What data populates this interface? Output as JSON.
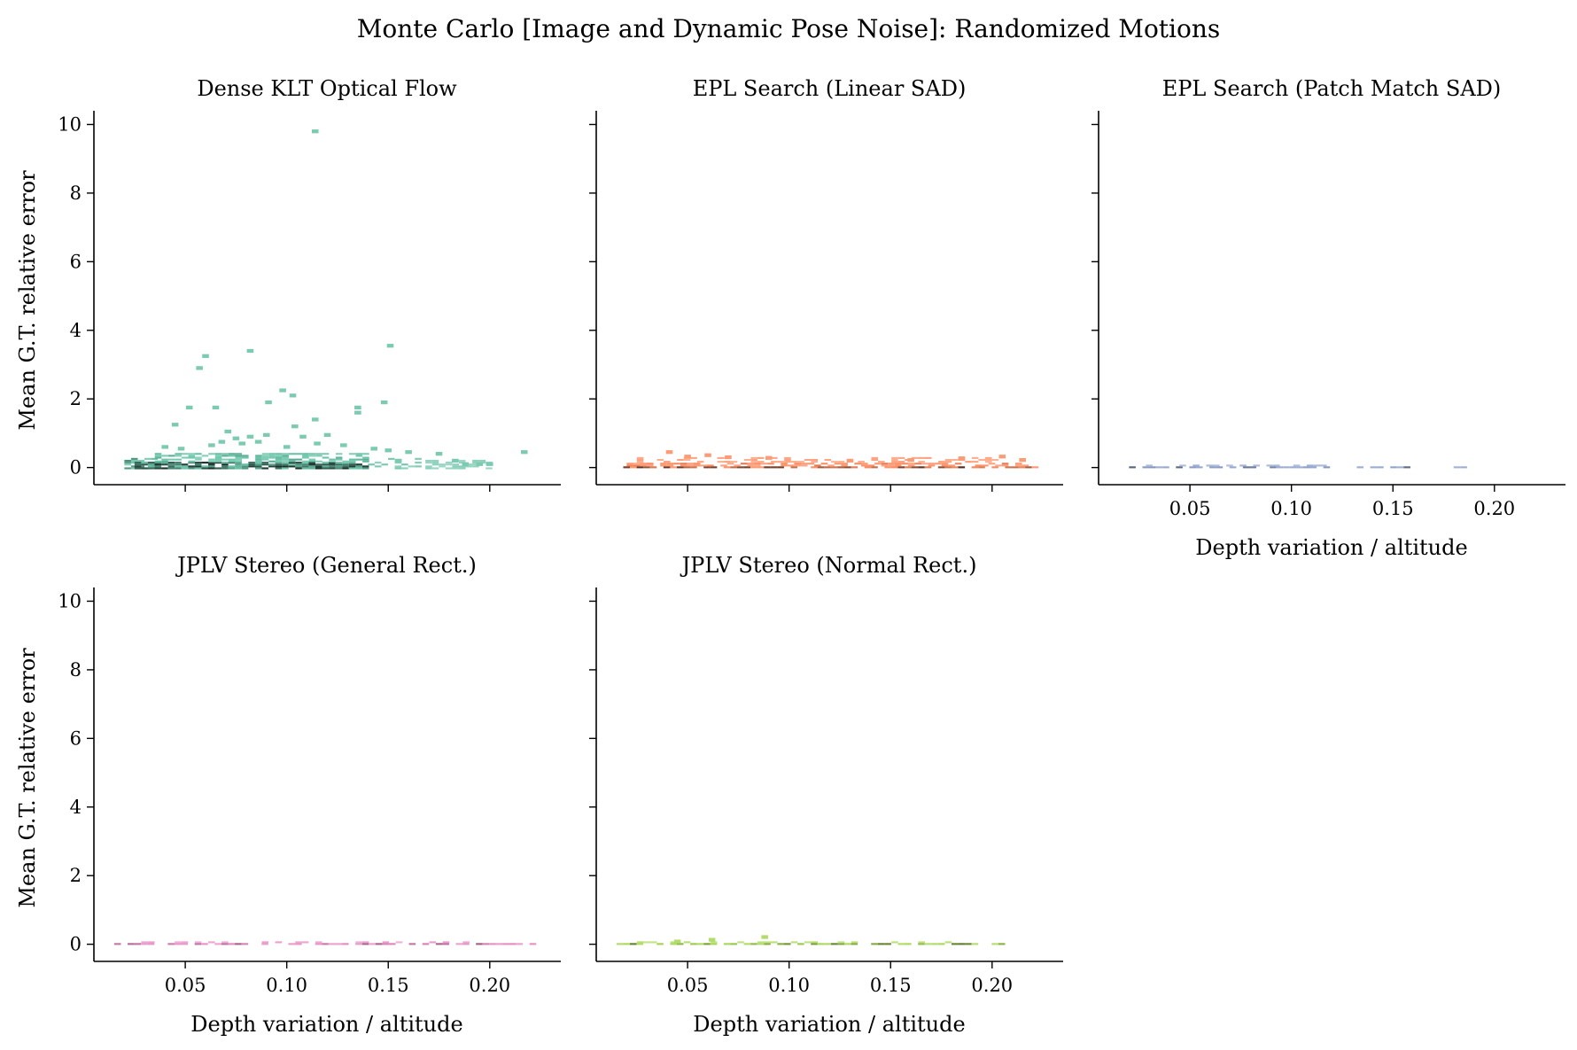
{
  "chart_data": {
    "type": "heatmap",
    "title": "Monte Carlo [Image and Dynamic Pose Noise]: Randomized Motions",
    "xlabel": "Depth variation / altitude",
    "ylabel": "Mean G.T. relative error",
    "xlim": [
      0.005,
      0.235
    ],
    "ylim": [
      -0.5,
      10.4
    ],
    "xticks": [
      "0.05",
      "0.10",
      "0.15",
      "0.20"
    ],
    "yticks": [
      "0",
      "2",
      "4",
      "6",
      "8",
      "10"
    ],
    "shared_axes": true,
    "layout": "2 rows x 3 columns, 5 panels",
    "panels": [
      {
        "title": "Dense KLT Optical Flow",
        "color": "#66c2a5",
        "x_range": [
          0.02,
          0.22
        ],
        "bulk": [
          {
            "x": [
              0.02,
              0.035
            ],
            "y": [
              -0.05,
              0.25
            ],
            "density": 0.55
          },
          {
            "x": [
              0.025,
              0.14
            ],
            "y": [
              -0.05,
              0.15
            ],
            "density": 0.85
          },
          {
            "x": [
              0.035,
              0.14
            ],
            "y": [
              0.15,
              0.4
            ],
            "density": 0.45
          },
          {
            "x": [
              0.14,
              0.165
            ],
            "y": [
              -0.05,
              0.25
            ],
            "density": 0.35
          },
          {
            "x": [
              0.165,
              0.2
            ],
            "y": [
              -0.05,
              0.2
            ],
            "density": 0.2
          }
        ],
        "points": [
          [
            0.114,
            9.8
          ],
          [
            0.06,
            3.25
          ],
          [
            0.057,
            2.9
          ],
          [
            0.082,
            3.4
          ],
          [
            0.151,
            3.55
          ],
          [
            0.098,
            2.25
          ],
          [
            0.091,
            1.9
          ],
          [
            0.103,
            2.1
          ],
          [
            0.052,
            1.75
          ],
          [
            0.065,
            1.75
          ],
          [
            0.135,
            1.75
          ],
          [
            0.135,
            1.6
          ],
          [
            0.148,
            1.9
          ],
          [
            0.114,
            1.4
          ],
          [
            0.045,
            1.25
          ],
          [
            0.104,
            1.2
          ],
          [
            0.071,
            1.05
          ],
          [
            0.09,
            0.95
          ],
          [
            0.075,
            0.85
          ],
          [
            0.082,
            0.9
          ],
          [
            0.108,
            0.9
          ],
          [
            0.12,
            0.95
          ],
          [
            0.04,
            0.6
          ],
          [
            0.048,
            0.55
          ],
          [
            0.063,
            0.65
          ],
          [
            0.068,
            0.75
          ],
          [
            0.078,
            0.7
          ],
          [
            0.086,
            0.75
          ],
          [
            0.1,
            0.6
          ],
          [
            0.115,
            0.7
          ],
          [
            0.128,
            0.65
          ],
          [
            0.143,
            0.55
          ],
          [
            0.15,
            0.5
          ],
          [
            0.16,
            0.45
          ],
          [
            0.175,
            0.4
          ],
          [
            0.183,
            0.2
          ],
          [
            0.188,
            0.1
          ],
          [
            0.195,
            0.1
          ],
          [
            0.2,
            0.1
          ],
          [
            0.217,
            0.45
          ],
          [
            0.155,
            0.2
          ]
        ]
      },
      {
        "title": "EPL Search (Linear SAD)",
        "color": "#fc8d62",
        "x_range": [
          0.015,
          0.225
        ],
        "bulk": [
          {
            "x": [
              0.015,
              0.22
            ],
            "y": [
              -0.02,
              0.03
            ],
            "density": 0.75
          },
          {
            "x": [
              0.02,
              0.215
            ],
            "y": [
              0.03,
              0.14
            ],
            "density": 0.45
          },
          {
            "x": [
              0.025,
              0.2
            ],
            "y": [
              0.14,
              0.26
            ],
            "density": 0.25
          }
        ],
        "points": [
          [
            0.05,
            0.32
          ],
          [
            0.06,
            0.36
          ],
          [
            0.07,
            0.3
          ],
          [
            0.041,
            0.45
          ],
          [
            0.09,
            0.28
          ],
          [
            0.185,
            0.27
          ],
          [
            0.205,
            0.32
          ],
          [
            0.215,
            0.22
          ],
          [
            0.13,
            0.2
          ],
          [
            0.16,
            0.22
          ]
        ]
      },
      {
        "title": "EPL Search (Patch Match SAD)",
        "color": "#8da0cb",
        "x_range": [
          0.015,
          0.19
        ],
        "bulk": [
          {
            "x": [
              0.02,
              0.16
            ],
            "y": [
              -0.02,
              0.03
            ],
            "density": 0.6
          },
          {
            "x": [
              0.025,
              0.115
            ],
            "y": [
              0.03,
              0.07
            ],
            "density": 0.25
          },
          {
            "x": [
              0.17,
              0.186
            ],
            "y": [
              -0.02,
              0.03
            ],
            "density": 0.3
          }
        ],
        "points": []
      },
      {
        "title": "JPLV Stereo (General Rect.)",
        "color": "#e78ac3",
        "x_range": [
          0.015,
          0.225
        ],
        "bulk": [
          {
            "x": [
              0.015,
              0.225
            ],
            "y": [
              -0.02,
              0.03
            ],
            "density": 0.55
          },
          {
            "x": [
              0.025,
              0.19
            ],
            "y": [
              0.03,
              0.08
            ],
            "density": 0.25
          }
        ],
        "points": []
      },
      {
        "title": "JPLV Stereo (Normal Rect.)",
        "color": "#a6d854",
        "x_range": [
          0.015,
          0.205
        ],
        "bulk": [
          {
            "x": [
              0.015,
              0.205
            ],
            "y": [
              -0.02,
              0.03
            ],
            "density": 0.6
          },
          {
            "x": [
              0.025,
              0.18
            ],
            "y": [
              0.03,
              0.08
            ],
            "density": 0.25
          }
        ],
        "points": [
          [
            0.062,
            0.13
          ],
          [
            0.088,
            0.21
          ],
          [
            0.045,
            0.08
          ]
        ]
      }
    ]
  }
}
